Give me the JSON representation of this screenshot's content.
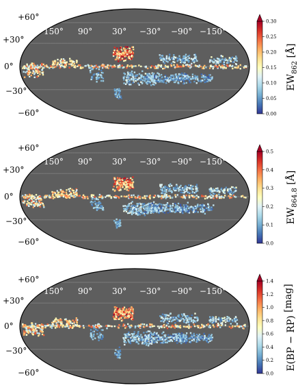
{
  "chart_data": [
    {
      "type": "heatmap",
      "projection": "mollweide",
      "background": "#5e5e5e",
      "grid": true,
      "lat_ticks": [
        "+60°",
        "+30°",
        "0°",
        "−30°",
        "−60°"
      ],
      "lon_ticks": [
        "150°",
        "90°",
        "30°",
        "−30°",
        "−90°",
        "−150°"
      ],
      "colorbar": {
        "label": "EW",
        "label_sub": "862",
        "label_unit": "[Å]",
        "ticks": [
          "0.00",
          "0.05",
          "0.10",
          "0.15",
          "0.20",
          "0.25",
          "0.30"
        ],
        "min": 0.0,
        "max": 0.3,
        "extend": "max",
        "colormap": "RdYlBu_r"
      }
    },
    {
      "type": "heatmap",
      "projection": "mollweide",
      "background": "#5e5e5e",
      "grid": true,
      "lat_ticks": [
        "+60°",
        "+30°",
        "0°",
        "−30°",
        "−60°"
      ],
      "lon_ticks": [
        "150°",
        "90°",
        "30°",
        "−30°",
        "−90°",
        "−150°"
      ],
      "colorbar": {
        "label": "EW",
        "label_sub": "864.8",
        "label_unit": "[Å]",
        "ticks": [
          "0.0",
          "0.1",
          "0.2",
          "0.3",
          "0.4",
          "0.5"
        ],
        "min": 0.0,
        "max": 0.5,
        "extend": "max",
        "colormap": "RdYlBu_r"
      }
    },
    {
      "type": "heatmap",
      "projection": "mollweide",
      "background": "#5e5e5e",
      "grid": true,
      "lat_ticks": [
        "+60°",
        "+30°",
        "0°",
        "−30°",
        "−60°"
      ],
      "lon_ticks": [
        "150°",
        "90°",
        "30°",
        "−30°",
        "−90°",
        "−150°"
      ],
      "colorbar": {
        "label": "E(BP − RP)",
        "label_sub": "",
        "label_unit": "[mag]",
        "ticks": [
          "0.0",
          "0.2",
          "0.4",
          "0.6",
          "0.8",
          "1.0",
          "1.2",
          "1.4"
        ],
        "min": 0.0,
        "max": 1.4,
        "extend": "max",
        "colormap": "RdYlBu_r"
      }
    }
  ],
  "colors": {
    "cmap_stops": [
      "#313695",
      "#4575b4",
      "#74add1",
      "#abd9e9",
      "#e0f3f8",
      "#ffffbf",
      "#fee090",
      "#fdae61",
      "#f46d43",
      "#d73027",
      "#a50026"
    ],
    "extend_arrow": "#a50026"
  }
}
